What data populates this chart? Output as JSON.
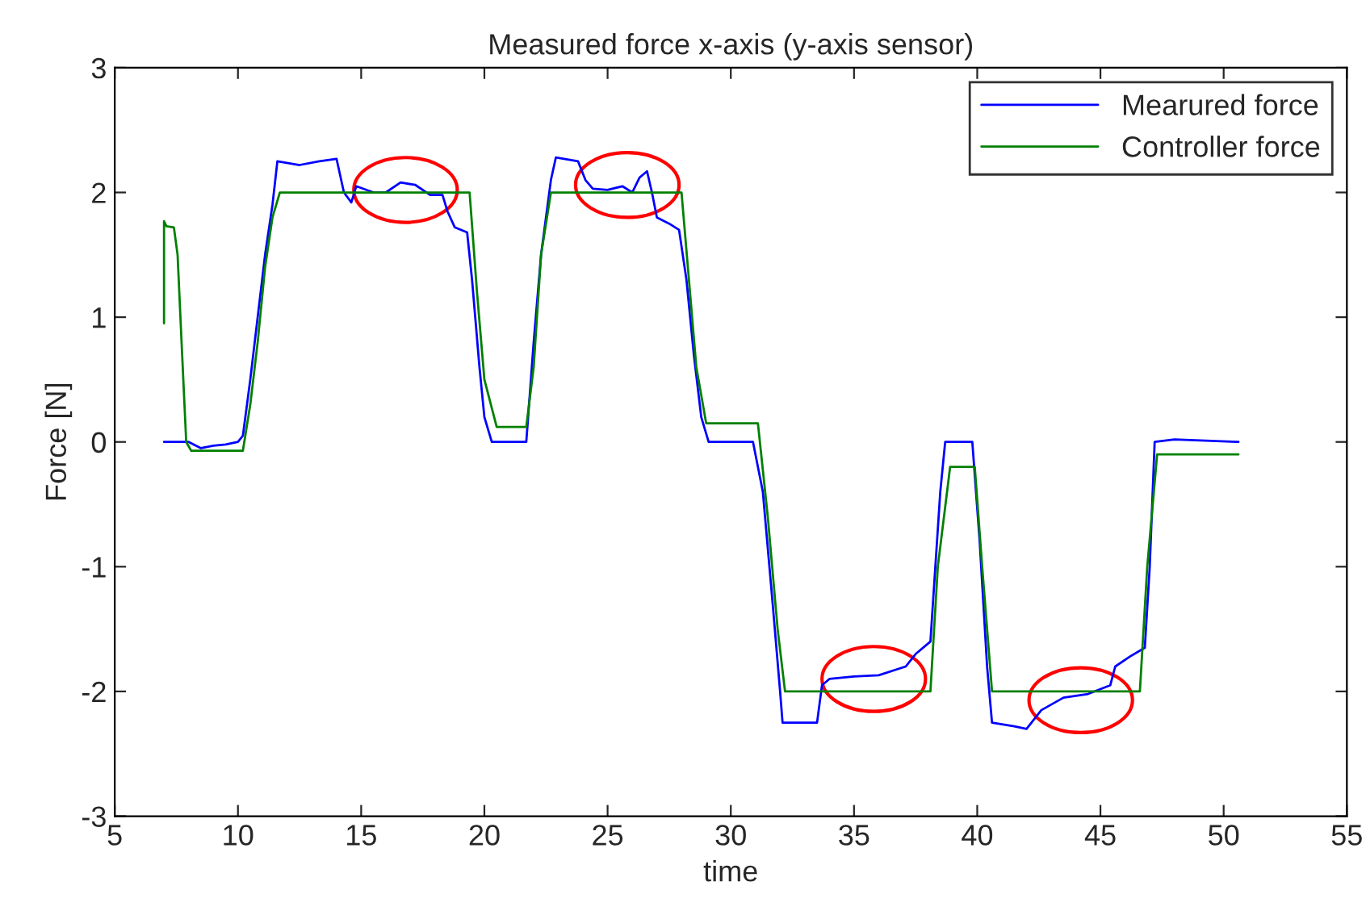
{
  "chart_data": {
    "type": "line",
    "title": "Measured force x-axis (y-axis sensor)",
    "xlabel": "time",
    "ylabel": "Force [N]",
    "xlim": [
      5,
      55
    ],
    "xticks": [
      5,
      10,
      15,
      20,
      25,
      30,
      35,
      40,
      45,
      50,
      55
    ],
    "ylim": [
      -3,
      3
    ],
    "yticks": [
      -3,
      -2,
      -1,
      0,
      1,
      2,
      3
    ],
    "grid": false,
    "legend": "top right",
    "marker": "none",
    "line_style": "solid",
    "series": [
      {
        "name": "Mearured force",
        "color": "#0000ff",
        "x": [
          7.0,
          8.0,
          8.5,
          9.0,
          9.5,
          10.0,
          10.2,
          10.5,
          10.8,
          11.1,
          11.4,
          11.6,
          12.5,
          13.3,
          14.0,
          14.3,
          14.6,
          14.8,
          15.5,
          16.0,
          16.6,
          17.2,
          17.8,
          18.3,
          18.5,
          18.8,
          19.3,
          19.5,
          19.8,
          20.0,
          20.3,
          21.7,
          22.0,
          22.3,
          22.7,
          22.9,
          23.8,
          24.1,
          24.4,
          25.0,
          25.6,
          26.0,
          26.3,
          26.6,
          26.8,
          27.0,
          27.5,
          27.9,
          28.2,
          28.5,
          28.8,
          29.1,
          30.9,
          31.3,
          31.7,
          32.0,
          32.1,
          33.5,
          33.7,
          34.0,
          35.0,
          36.0,
          37.1,
          37.5,
          38.1,
          38.3,
          38.5,
          38.7,
          39.8,
          40.1,
          40.4,
          40.6,
          41.5,
          42.0,
          42.6,
          43.5,
          44.5,
          45.4,
          45.6,
          46.2,
          46.8,
          47.0,
          47.2,
          48.0,
          50.6
        ],
        "values": [
          0.0,
          0.0,
          -0.05,
          -0.03,
          -0.02,
          0.0,
          0.05,
          0.5,
          1.0,
          1.5,
          1.9,
          2.25,
          2.22,
          2.25,
          2.27,
          2.0,
          1.92,
          2.05,
          2.0,
          2.0,
          2.08,
          2.06,
          1.98,
          1.98,
          1.85,
          1.72,
          1.68,
          1.3,
          0.6,
          0.2,
          0.0,
          0.0,
          0.8,
          1.5,
          2.1,
          2.28,
          2.25,
          2.1,
          2.03,
          2.02,
          2.05,
          2.0,
          2.12,
          2.17,
          2.0,
          1.8,
          1.75,
          1.7,
          1.3,
          0.7,
          0.2,
          0.0,
          0.0,
          -0.4,
          -1.3,
          -2.0,
          -2.25,
          -2.25,
          -1.95,
          -1.9,
          -1.88,
          -1.87,
          -1.8,
          -1.7,
          -1.6,
          -1.0,
          -0.4,
          0.0,
          0.0,
          -0.8,
          -1.8,
          -2.25,
          -2.28,
          -2.3,
          -2.15,
          -2.05,
          -2.02,
          -1.95,
          -1.8,
          -1.72,
          -1.65,
          -1.0,
          0.0,
          0.02,
          0.0
        ]
      },
      {
        "name": "Controller force",
        "color": "#008000",
        "x": [
          7.0,
          7.0,
          7.1,
          7.4,
          7.55,
          7.7,
          7.9,
          8.1,
          10.2,
          10.5,
          10.8,
          11.1,
          11.4,
          11.7,
          19.4,
          19.7,
          20.0,
          20.5,
          21.7,
          22.0,
          22.3,
          22.7,
          28.0,
          28.3,
          28.6,
          29.0,
          31.1,
          31.5,
          31.9,
          32.2,
          38.1,
          38.4,
          38.9,
          39.9,
          40.2,
          40.6,
          46.6,
          46.9,
          47.3,
          50.6
        ],
        "values": [
          0.95,
          1.77,
          1.73,
          1.72,
          1.5,
          0.85,
          0.0,
          -0.07,
          -0.07,
          0.3,
          0.8,
          1.4,
          1.8,
          2.0,
          2.0,
          1.2,
          0.5,
          0.12,
          0.12,
          0.6,
          1.5,
          2.0,
          2.0,
          1.3,
          0.6,
          0.15,
          0.15,
          -0.6,
          -1.5,
          -2.0,
          -2.0,
          -1.0,
          -0.2,
          -0.2,
          -1.0,
          -2.0,
          -2.0,
          -1.0,
          -0.1,
          -0.1
        ]
      }
    ]
  }
}
